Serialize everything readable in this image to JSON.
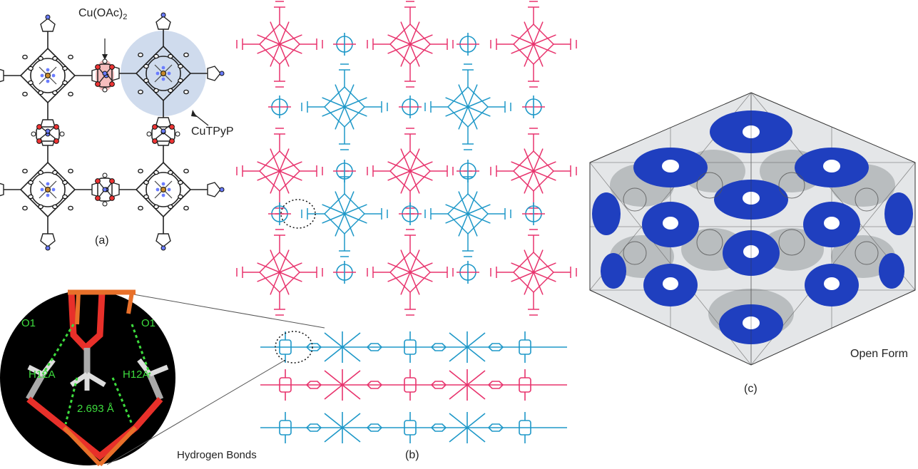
{
  "panels": {
    "a": {
      "tag": "(a)",
      "callout_top": "Cu(OAc)",
      "callout_top_subscript": "2",
      "callout_right": "CuTPyP"
    },
    "b": {
      "tag": "(b)",
      "colors": {
        "layer_1": "#e8336d",
        "layer_2": "#1e98c8"
      }
    },
    "c": {
      "tag": "(c)",
      "caption": "Open Form",
      "colors": {
        "pore_surface": "#1f3fbf",
        "framework_surface": "#c9cccc"
      }
    },
    "inset": {
      "caption": "Hydrogen Bonds",
      "labels": {
        "o1_left": "O1",
        "o1_right": "O1",
        "h_left": "H12A",
        "h_right": "H12A",
        "distance": "2.693 Å"
      },
      "colors": {
        "background": "#000000",
        "bond_label": "#3ddc3d"
      }
    }
  }
}
